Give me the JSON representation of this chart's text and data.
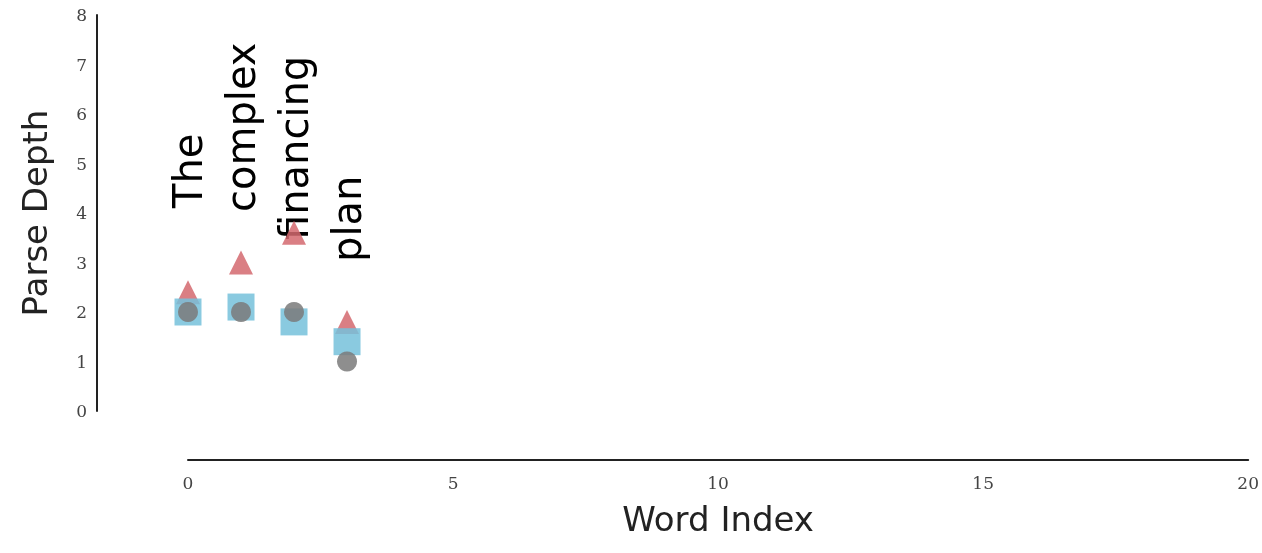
{
  "chart_data": {
    "type": "scatter",
    "xlabel": "Word Index",
    "ylabel": "Parse Depth",
    "x": [
      0,
      1,
      2,
      3
    ],
    "series": [
      {
        "color": "#d4686e",
        "marker": "triangle",
        "values": [
          2.4,
          3.0,
          3.6,
          1.8
        ]
      },
      {
        "color": "#76c1da",
        "marker": "square",
        "values": [
          2.0,
          2.1,
          1.8,
          1.4
        ]
      },
      {
        "color": "#7a7a7a",
        "marker": "circle",
        "values": [
          2,
          2,
          2,
          1
        ]
      }
    ],
    "annotations": [
      "The",
      "complex",
      "financing",
      "plan"
    ],
    "xlim": [
      0,
      20
    ],
    "xticks": [
      0,
      5,
      10,
      15,
      20
    ],
    "ylim": [
      0,
      8
    ],
    "yticks": [
      0,
      1,
      2,
      3,
      4,
      5,
      6,
      7,
      8
    ],
    "grid": false
  }
}
